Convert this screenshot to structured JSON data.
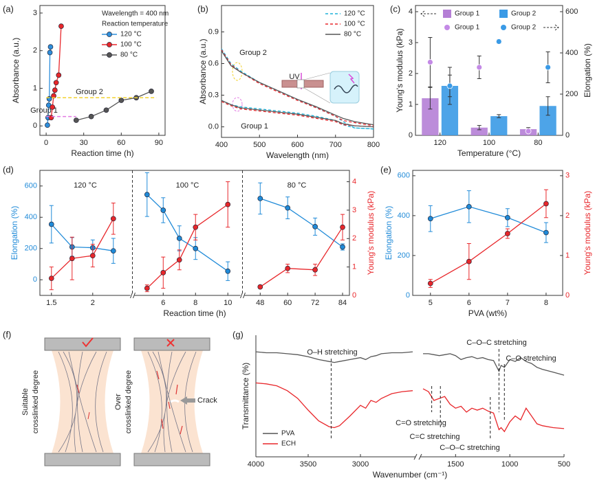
{
  "panel_labels": [
    "(a)",
    "(b)",
    "(c)",
    "(d)",
    "(e)",
    "(f)",
    "(g)"
  ],
  "diagram": {
    "labels": [
      "Suitable",
      "crosslinked degree",
      "Over",
      "crosslinked degree",
      "Crack"
    ]
  },
  "chart_data": [
    {
      "type": "line",
      "xlabel": "Reaction time (h)",
      "ylabel": "Absorbance (a.u.)",
      "xlim": [
        -5,
        95
      ],
      "xticks": [
        0,
        30,
        60,
        90
      ],
      "ylim": [
        -0.25,
        3.2
      ],
      "yticks": [
        0,
        1,
        2,
        3
      ],
      "markers": true,
      "legend": "upper right",
      "annotations": [
        "Wavelength = 400 nm",
        "Reaction temperature"
      ],
      "series": [
        {
          "name": "120 °C",
          "color": "#2f8fdc",
          "x": [
            1,
            1.5,
            2,
            2.5,
            3,
            3.5
          ],
          "values": [
            0.02,
            0.22,
            0.55,
            0.72,
            1.95,
            2.1
          ]
        },
        {
          "name": "100 °C",
          "color": "#e8262a",
          "x": [
            4,
            5,
            6,
            7,
            8,
            10,
            12
          ],
          "values": [
            0.22,
            0.5,
            0.8,
            0.95,
            1.15,
            1.35,
            2.65
          ]
        },
        {
          "name": "80 °C",
          "color": "#555555",
          "x": [
            24,
            36,
            48,
            60,
            72,
            84
          ],
          "values": [
            0.15,
            0.25,
            0.42,
            0.68,
            0.75,
            0.92
          ]
        }
      ],
      "hlines": [
        {
          "value": 0.75,
          "x": [
            0,
            88
          ],
          "color": "#f2d22e",
          "label": "Group 2"
        },
        {
          "value": 0.25,
          "x": [
            0,
            24
          ],
          "color": "#e27ae2",
          "label": "Group 1"
        }
      ]
    },
    {
      "type": "line",
      "xlabel": "Wavelength (nm)",
      "ylabel": "Absorbance (a.u.)",
      "xlim": [
        400,
        800
      ],
      "xticks": [
        400,
        500,
        600,
        700,
        800
      ],
      "ylim": [
        -0.1,
        1.15
      ],
      "yticks": [
        {
          "value": 0,
          "label": "0.0"
        },
        {
          "value": 0.3,
          "label": "0.3"
        },
        {
          "value": 0.6,
          "label": "0.6"
        },
        {
          "value": 0.9,
          "label": "0.9"
        }
      ],
      "legend": "upper right",
      "annotations": [
        "Group 2",
        "Group 1",
        "UV"
      ],
      "x": [
        400,
        425,
        450,
        500,
        550,
        600,
        650,
        700,
        720,
        750,
        800
      ],
      "series": [
        {
          "name": "120 °C",
          "color": "#1cb0d8",
          "dash": true,
          "values": [
            0.74,
            0.6,
            0.53,
            0.42,
            0.34,
            0.26,
            0.18,
            0.1,
            0.05,
            -0.01,
            -0.02
          ],
          "group1_values": [
            0.25,
            0.21,
            0.19,
            0.17,
            0.15,
            0.13,
            0.1,
            0.06,
            0.02,
            -0.01,
            -0.02
          ]
        },
        {
          "name": "100 °C",
          "color": "#e8262a",
          "dash": true,
          "values": [
            0.73,
            0.59,
            0.52,
            0.41,
            0.33,
            0.25,
            0.18,
            0.1,
            0.06,
            0.04,
            0.01
          ],
          "group1_values": [
            0.24,
            0.2,
            0.17,
            0.15,
            0.13,
            0.11,
            0.08,
            0.05,
            0.02,
            0.01,
            0
          ]
        },
        {
          "name": "80 °C",
          "color": "#555555",
          "values": [
            0.72,
            0.58,
            0.52,
            0.42,
            0.34,
            0.26,
            0.19,
            0.11,
            0.08,
            0.05,
            0.02
          ],
          "group1_values": [
            0.25,
            0.21,
            0.18,
            0.16,
            0.14,
            0.12,
            0.09,
            0.06,
            0.03,
            0.01,
            0
          ]
        }
      ]
    },
    {
      "type": "bar",
      "xlabel": "Temperature (°C)",
      "ylabel": "Young's modulus (kPa)",
      "y2label": "Elongation (%)",
      "categories": [
        "120",
        "100",
        "80"
      ],
      "ylim": [
        0,
        4.2
      ],
      "yticks": [
        0,
        1,
        2,
        3,
        4
      ],
      "y2lim": [
        0,
        630
      ],
      "y2ticks": [
        0,
        200,
        400,
        600
      ],
      "series": [
        {
          "name": "Group 1",
          "color": "#b57fd6",
          "values": [
            1.2,
            0.25,
            0.2
          ],
          "error": [
            0.35,
            0.07,
            0.05
          ]
        },
        {
          "name": "Group 2",
          "color": "#3a9ae6",
          "values": [
            1.6,
            0.62,
            0.95
          ],
          "error": [
            0.35,
            0.05,
            0.3
          ]
        },
        {
          "name": "Group 1",
          "color": "#c48ae6",
          "axis": "y2",
          "values": [
            355,
            330,
            20
          ],
          "error": [
            120,
            55,
            10
          ]
        },
        {
          "name": "Group 2",
          "color": "#3a9ae6",
          "axis": "y2",
          "values": [
            240,
            455,
            330
          ],
          "error": [
            90,
            10,
            75
          ]
        }
      ]
    },
    {
      "type": "line",
      "xlabel": "Reaction time (h)",
      "ylabel": "Elongation (%)",
      "y2label": "Young's modulus (kPa)",
      "ylim": [
        -100,
        700
      ],
      "yticks": [
        0,
        200,
        400,
        600
      ],
      "y2lim": [
        0,
        4.4
      ],
      "y2ticks": [
        0,
        1,
        2,
        3,
        4
      ],
      "markers": true,
      "panels": [
        {
          "label": "120 °C",
          "xlim": [
            1.36,
            2.46
          ],
          "xticks": [
            1.5,
            2
          ],
          "x": [
            1.5,
            1.75,
            2,
            2.25
          ],
          "series": [
            {
              "color": "#1f8ad8",
              "values": [
                355,
                210,
                205,
                185
              ],
              "error": [
                120,
                60,
                50,
                80
              ]
            },
            {
              "color": "#e8262a",
              "axis": "y2",
              "values": [
                0.6,
                1.3,
                1.4,
                2.7
              ],
              "error": [
                0.4,
                0.75,
                0.4,
                0.55
              ]
            }
          ]
        },
        {
          "label": "100 °C",
          "xlim": [
            4.2,
            10.8
          ],
          "xticks": [
            6,
            8,
            10
          ],
          "x": [
            5,
            6,
            7,
            8,
            10
          ],
          "series": [
            {
              "color": "#1f8ad8",
              "values": [
                545,
                445,
                265,
                200,
                55
              ],
              "error": [
                140,
                80,
                80,
                70,
                60
              ]
            },
            {
              "color": "#e8262a",
              "axis": "y2",
              "values": [
                0.25,
                0.8,
                1.25,
                2.4,
                3.2
              ],
              "error": [
                0.12,
                0.55,
                0.35,
                0.45,
                0.8
              ]
            }
          ]
        },
        {
          "label": "80 °C",
          "xlim": [
            41,
            87
          ],
          "xticks": [
            48,
            60,
            72,
            84
          ],
          "x": [
            48,
            60,
            72,
            84
          ],
          "series": [
            {
              "color": "#1f8ad8",
              "values": [
                520,
                460,
                340,
                210
              ],
              "error": [
                100,
                70,
                55,
                20
              ]
            },
            {
              "color": "#e8262a",
              "axis": "y2",
              "values": [
                0.3,
                0.95,
                0.9,
                2.4
              ],
              "error": [
                0.05,
                0.15,
                0.2,
                0.45
              ]
            }
          ]
        }
      ]
    },
    {
      "type": "line",
      "xlabel": "PVA (wt%)",
      "ylabel": "Elongation (%)",
      "y2label": "Young's modulus (kPa)",
      "xlim": [
        4.54,
        8.43
      ],
      "xticks": [
        5,
        6,
        7,
        8
      ],
      "ylim": [
        0,
        627
      ],
      "yticks": [
        0,
        200,
        400,
        600
      ],
      "y2lim": [
        0,
        3.135
      ],
      "y2ticks": [
        0,
        1,
        2,
        3
      ],
      "markers": true,
      "x": [
        5,
        6,
        7,
        8
      ],
      "series": [
        {
          "color": "#1f8ad8",
          "values": [
            385,
            445,
            390,
            315
          ],
          "error": [
            65,
            80,
            45,
            50
          ]
        },
        {
          "color": "#e8262a",
          "axis": "y2",
          "values": [
            0.3,
            0.85,
            1.55,
            2.3
          ],
          "error": [
            0.1,
            0.45,
            0.12,
            0.35
          ]
        }
      ]
    },
    {
      "type": "line",
      "xlabel": "Wavenumber (cm⁻¹)",
      "ylabel": "Transmittance (%)",
      "ylim": [
        -0.2,
        1.05
      ],
      "legend": "lower left",
      "xsegments": [
        {
          "xlim": [
            4000,
            2500
          ],
          "xticks": [
            4000,
            3500,
            3000
          ]
        },
        {
          "xlim": [
            1800,
            500
          ],
          "xticks": [
            1500,
            1000,
            500
          ]
        }
      ],
      "x": [
        4000,
        3900,
        3800,
        3700,
        3600,
        3500,
        3400,
        3300,
        3250,
        3200,
        3100,
        3000,
        2950,
        2900,
        2850,
        2800,
        2700,
        2600,
        2500,
        2200,
        1800,
        1750,
        1700,
        1650,
        1600,
        1550,
        1500,
        1450,
        1400,
        1350,
        1300,
        1250,
        1200,
        1150,
        1100,
        1080,
        1050,
        1000,
        950,
        900,
        850,
        800,
        750,
        700,
        600,
        500
      ],
      "series": [
        {
          "name": "PVA",
          "color": "#555555",
          "values": [
            0.88,
            0.87,
            0.87,
            0.86,
            0.85,
            0.83,
            0.8,
            0.78,
            0.77,
            0.78,
            0.8,
            0.82,
            0.8,
            0.83,
            0.84,
            0.86,
            0.87,
            0.87,
            0.88,
            null,
            0.86,
            0.86,
            0.85,
            0.84,
            0.85,
            0.86,
            0.84,
            0.8,
            0.82,
            0.83,
            0.81,
            0.82,
            0.8,
            0.79,
            0.68,
            0.74,
            0.72,
            0.8,
            0.78,
            0.82,
            0.78,
            0.76,
            0.72,
            0.7,
            0.67,
            0.64
          ]
        },
        {
          "name": "ECH",
          "color": "#e8262a",
          "values": [
            0.56,
            0.55,
            0.53,
            0.48,
            0.4,
            0.28,
            0.17,
            0.11,
            0.1,
            0.12,
            0.22,
            0.33,
            0.3,
            0.38,
            0.36,
            0.4,
            0.45,
            0.47,
            0.48,
            null,
            0.5,
            0.47,
            0.38,
            0.4,
            0.42,
            0.34,
            0.3,
            0.32,
            0.26,
            0.3,
            0.28,
            0.3,
            0.27,
            0.25,
            0.08,
            0.1,
            0.06,
            0.16,
            0.22,
            0.18,
            0.3,
            0.22,
            0.14,
            0.12,
            0.1,
            0.09
          ]
        }
      ],
      "vlines": [
        {
          "x": 3280,
          "label": "O–H stretching"
        },
        {
          "x": 1720,
          "label": "C=O stretching"
        },
        {
          "x": 1640,
          "label": "C=C stretching"
        },
        {
          "x": 1100,
          "label": "C–O–C stretching"
        },
        {
          "x": 1050,
          "label": "C–O stretching"
        },
        {
          "x": 1180,
          "label": "C–O–C stretching"
        }
      ]
    }
  ]
}
